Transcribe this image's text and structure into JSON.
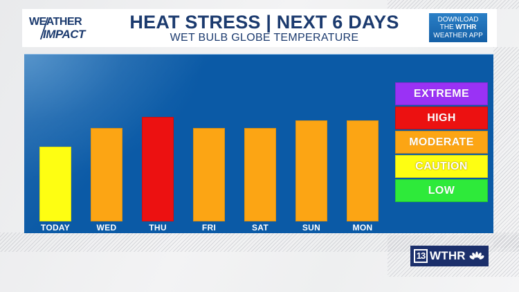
{
  "branding": {
    "show_logo_line1": "WEATHER",
    "show_logo_line2": "IMPACT",
    "app_promo_line1": "DOWNLOAD",
    "app_promo_line2_prefix": "THE ",
    "app_promo_line2_bold": "WTHR",
    "app_promo_line3": "WEATHER APP",
    "station_number": "13",
    "station_callsign": "WTHR",
    "network_logo": "nbc-peacock-icon"
  },
  "header": {
    "title": "HEAT STRESS | NEXT 6 DAYS",
    "subtitle": "WET BULB GLOBE TEMPERATURE"
  },
  "colors": {
    "panel_blue": "#0b5aa6",
    "title_navy": "#1b3a6e",
    "extreme": "#9a32f5",
    "high": "#ec1111",
    "moderate": "#fca514",
    "caution": "#fefe12",
    "low": "#2eea3a"
  },
  "chart_data": {
    "type": "bar",
    "title": "HEAT STRESS | NEXT 6 DAYS",
    "subtitle": "WET BULB GLOBE TEMPERATURE",
    "xlabel": "",
    "ylabel": "",
    "categories": [
      "TODAY",
      "WED",
      "THU",
      "FRI",
      "SAT",
      "SUN",
      "MON"
    ],
    "values": [
      108,
      135,
      151,
      135,
      135,
      146,
      146
    ],
    "value_units": "relative bar height (px, no axis shown)",
    "risk_levels": [
      "CAUTION",
      "MODERATE",
      "HIGH",
      "MODERATE",
      "MODERATE",
      "MODERATE",
      "MODERATE"
    ],
    "bar_colors": [
      "#fefe12",
      "#fca514",
      "#ec1111",
      "#fca514",
      "#fca514",
      "#fca514",
      "#fca514"
    ],
    "grid": false,
    "legend_position": "right",
    "legend": [
      {
        "label": "EXTREME",
        "color": "#9a32f5"
      },
      {
        "label": "HIGH",
        "color": "#ec1111"
      },
      {
        "label": "MODERATE",
        "color": "#fca514"
      },
      {
        "label": "CAUTION",
        "color": "#fefe12"
      },
      {
        "label": "LOW",
        "color": "#2eea3a"
      }
    ]
  }
}
